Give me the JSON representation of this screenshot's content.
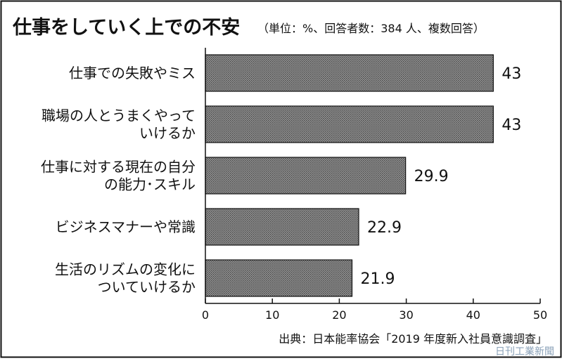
{
  "chart_data": {
    "type": "bar",
    "orientation": "horizontal",
    "title": "仕事をしていく上での不安",
    "subtitle": "（単位：%、回答者数：384 人、複数回答）",
    "categories": [
      [
        "仕事での失敗やミス"
      ],
      [
        "職場の人とうまくやって",
        "いけるか"
      ],
      [
        "仕事に対する現在の自分",
        "の能力･スキル"
      ],
      [
        "ビジネスマナーや常識"
      ],
      [
        "生活のリズムの変化に",
        "ついていけるか"
      ]
    ],
    "values": [
      43,
      43,
      29.9,
      22.9,
      21.9
    ],
    "value_labels": [
      "43",
      "43",
      "29.9",
      "22.9",
      "21.9"
    ],
    "xlim": [
      0,
      50
    ],
    "xticks": [
      0,
      10,
      20,
      30,
      40,
      50
    ],
    "grid": false,
    "source": "出典：日本能率協会「2019 年度新入社員意識調査」",
    "colors": {
      "bar_fill": "#8c8c8c",
      "bar_stroke": "#111111",
      "frame": "#111111"
    }
  },
  "watermark": "日刊工業新聞"
}
